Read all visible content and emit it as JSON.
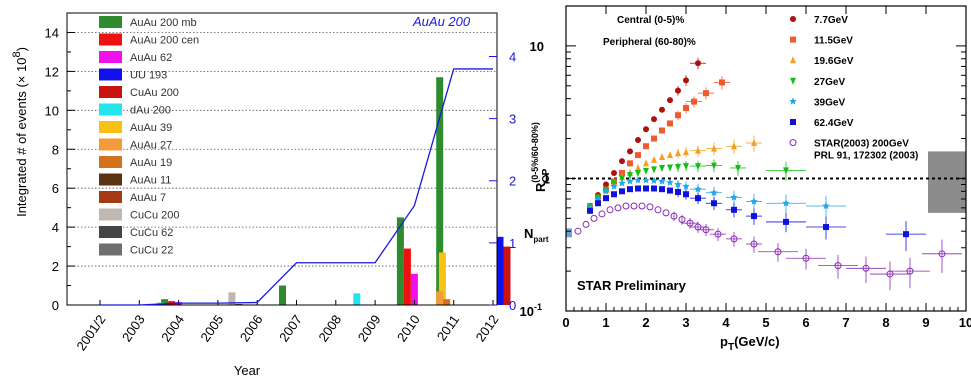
{
  "chart_data": [
    {
      "type": "bar",
      "panel": "left",
      "xlabel": "Year",
      "ylabel": "Integrated # of events (× 10⁸)",
      "ylabel_main": "Integrated # of events (",
      "ylabel_times": "× 10",
      "ylabel_exp": "8",
      "ylabel_close": ")",
      "right_axis_ticks": [
        "0",
        "1",
        "2",
        "3",
        "4"
      ],
      "right_axis_max": 4.7,
      "ylim": [
        0,
        15
      ],
      "yticks": [
        "0",
        "2",
        "4",
        "6",
        "8",
        "10",
        "12",
        "14"
      ],
      "categories": [
        "2001/2",
        "2003",
        "2004",
        "2005",
        "2006",
        "2007",
        "2008",
        "2009",
        "2010",
        "2011",
        "2012"
      ],
      "line_label": "AuAu 200",
      "line_color": "#1a1adb",
      "line_values": [
        0,
        0,
        0.03,
        0.03,
        0.04,
        0.68,
        0.68,
        0.68,
        1.6,
        3.8,
        3.8
      ],
      "series": [
        {
          "name": "AuAu 200 mb",
          "color": "#2e8b2e",
          "values": [
            0,
            0,
            0.3,
            0,
            0,
            1.0,
            0,
            0,
            4.5,
            11.7,
            0
          ]
        },
        {
          "name": "AuAu 200 cen",
          "color": "#ee1111",
          "values": [
            0,
            0,
            0.2,
            0,
            0,
            0,
            0,
            0,
            2.9,
            0,
            0
          ]
        },
        {
          "name": "AuAu 62",
          "color": "#ee11ee",
          "values": [
            0,
            0,
            0.15,
            0,
            0,
            0,
            0,
            0,
            1.6,
            0,
            0
          ]
        },
        {
          "name": "UU 193",
          "color": "#1111ee",
          "values": [
            0,
            0,
            0,
            0,
            0,
            0,
            0,
            0,
            0,
            0,
            3.5
          ]
        },
        {
          "name": "CuAu 200",
          "color": "#cc1111",
          "values": [
            0,
            0,
            0,
            0,
            0,
            0,
            0,
            0,
            0,
            0,
            3.0
          ]
        },
        {
          "name": "dAu 200",
          "color": "#22e5ee",
          "values": [
            0,
            0.12,
            0,
            0,
            0,
            0,
            0.6,
            0,
            0,
            0,
            0
          ]
        },
        {
          "name": "AuAu 39",
          "color": "#f7c214",
          "values": [
            0,
            0,
            0,
            0,
            0,
            0,
            0,
            0,
            2.7,
            0,
            0
          ]
        },
        {
          "name": "AuAu 27",
          "color": "#f59a3a",
          "values": [
            0,
            0,
            0,
            0,
            0,
            0,
            0,
            0,
            0,
            0.7,
            0
          ]
        },
        {
          "name": "AuAu 19",
          "color": "#d2721a",
          "values": [
            0,
            0,
            0,
            0,
            0,
            0,
            0,
            0,
            0,
            0.3,
            0
          ]
        },
        {
          "name": "AuAu 11",
          "color": "#5b3310",
          "values": [
            0,
            0,
            0,
            0,
            0,
            0,
            0,
            0,
            0,
            0,
            0
          ]
        },
        {
          "name": "AuAu 7",
          "color": "#a33a12",
          "values": [
            0,
            0,
            0,
            0,
            0,
            0,
            0,
            0,
            0,
            0,
            0
          ]
        },
        {
          "name": "CuCu 200",
          "color": "#c0b8b0",
          "values": [
            0,
            0,
            0,
            0.65,
            0,
            0,
            0,
            0,
            0,
            0,
            0
          ]
        },
        {
          "name": "CuCu 62",
          "color": "#444444",
          "values": [
            0,
            0,
            0,
            0.05,
            0,
            0,
            0,
            0,
            0,
            0,
            0
          ]
        },
        {
          "name": "CuCu 22",
          "color": "#6f6f6f",
          "values": [
            0,
            0,
            0,
            0.03,
            0,
            0,
            0,
            0,
            0,
            0,
            0
          ]
        }
      ]
    },
    {
      "type": "scatter",
      "panel": "right",
      "xlabel": "p",
      "xlabel_sub": "T",
      "xlabel_unit": "(GeV/c)",
      "ylabel": "R",
      "ylabel_sub": "CP",
      "ylabel_sup": "(0-5%/60-80%)",
      "xlim": [
        0,
        10
      ],
      "ylim": [
        0.1,
        20
      ],
      "log_y": true,
      "xticks": [
        "0",
        "1",
        "2",
        "3",
        "4",
        "5",
        "6",
        "7",
        "8",
        "9",
        "10"
      ],
      "yticks": [
        {
          "v": 0.1,
          "label": "10⁻¹"
        },
        {
          "v": 1,
          "label": "1"
        },
        {
          "v": 10,
          "label": "10"
        }
      ],
      "ytick_base": "10",
      "ytick_neg_exp": "-1",
      "annotations": [
        "Central (0-5)%",
        "Peripheral (60-80)%",
        "STAR Preliminary",
        "N"
      ],
      "npart_label": "N",
      "npart_sub": "part",
      "series": [
        {
          "name": "7.7GeV",
          "color": "#b01010",
          "marker": "circle",
          "x": [
            0.6,
            0.8,
            1.0,
            1.2,
            1.4,
            1.6,
            1.8,
            2.0,
            2.2,
            2.4,
            2.6,
            2.8,
            3.0,
            3.3
          ],
          "y": [
            0.62,
            0.75,
            0.9,
            1.1,
            1.35,
            1.6,
            1.95,
            2.35,
            2.8,
            3.3,
            3.9,
            4.6,
            5.5,
            7.4
          ]
        },
        {
          "name": "11.5GeV",
          "color": "#f05a30",
          "marker": "square",
          "x": [
            0.6,
            0.8,
            1.0,
            1.2,
            1.4,
            1.6,
            1.8,
            2.0,
            2.2,
            2.4,
            2.6,
            2.8,
            3.0,
            3.2,
            3.5,
            3.9
          ],
          "y": [
            0.6,
            0.7,
            0.82,
            0.95,
            1.1,
            1.3,
            1.5,
            1.75,
            2.0,
            2.3,
            2.6,
            3.0,
            3.4,
            3.8,
            4.4,
            5.3
          ]
        },
        {
          "name": "19.6GeV",
          "color": "#f5a020",
          "marker": "triangle-up",
          "x": [
            0.6,
            0.8,
            1.0,
            1.2,
            1.4,
            1.6,
            1.8,
            2.0,
            2.2,
            2.4,
            2.6,
            2.8,
            3.0,
            3.3,
            3.7,
            4.2,
            4.7
          ],
          "y": [
            0.62,
            0.72,
            0.82,
            0.92,
            1.02,
            1.1,
            1.2,
            1.3,
            1.38,
            1.45,
            1.5,
            1.55,
            1.58,
            1.62,
            1.68,
            1.75,
            1.85
          ]
        },
        {
          "name": "27GeV",
          "color": "#11c011",
          "marker": "triangle-down",
          "x": [
            0.6,
            0.8,
            1.0,
            1.2,
            1.4,
            1.6,
            1.8,
            2.0,
            2.2,
            2.4,
            2.6,
            2.8,
            3.0,
            3.3,
            3.7,
            4.3,
            5.5
          ],
          "y": [
            0.62,
            0.72,
            0.82,
            0.92,
            1.0,
            1.06,
            1.1,
            1.14,
            1.17,
            1.2,
            1.21,
            1.22,
            1.24,
            1.24,
            1.25,
            1.2,
            1.15
          ]
        },
        {
          "name": "39GeV",
          "color": "#20a8e8",
          "marker": "star",
          "x": [
            0.6,
            0.8,
            1.0,
            1.2,
            1.4,
            1.6,
            1.8,
            2.0,
            2.2,
            2.4,
            2.6,
            2.8,
            3.0,
            3.3,
            3.7,
            4.2,
            4.7,
            5.5,
            6.5
          ],
          "y": [
            0.6,
            0.7,
            0.8,
            0.87,
            0.92,
            0.95,
            0.97,
            0.97,
            0.96,
            0.95,
            0.93,
            0.9,
            0.87,
            0.83,
            0.78,
            0.72,
            0.67,
            0.65,
            0.62
          ]
        },
        {
          "name": "62.4GeV",
          "color": "#1111dd",
          "marker": "square",
          "x": [
            0.6,
            0.8,
            1.0,
            1.2,
            1.4,
            1.6,
            1.8,
            2.0,
            2.2,
            2.4,
            2.6,
            2.8,
            3.0,
            3.3,
            3.7,
            4.2,
            4.7,
            5.5,
            6.5,
            8.5
          ],
          "y": [
            0.57,
            0.65,
            0.71,
            0.76,
            0.8,
            0.83,
            0.84,
            0.84,
            0.84,
            0.83,
            0.81,
            0.79,
            0.76,
            0.71,
            0.65,
            0.58,
            0.52,
            0.47,
            0.43,
            0.38
          ]
        },
        {
          "name": "STAR(2003) 200GeV",
          "name2": "PRL 91, 172302 (2003)",
          "color": "#8a2bb5",
          "marker": "open-circle",
          "x": [
            0.3,
            0.5,
            0.7,
            0.9,
            1.1,
            1.3,
            1.5,
            1.7,
            1.9,
            2.1,
            2.3,
            2.5,
            2.7,
            2.9,
            3.1,
            3.3,
            3.5,
            3.8,
            4.2,
            4.7,
            5.3,
            6.0,
            6.8,
            7.5,
            8.1,
            8.6,
            9.4
          ],
          "y": [
            0.4,
            0.45,
            0.5,
            0.54,
            0.58,
            0.6,
            0.62,
            0.62,
            0.62,
            0.61,
            0.58,
            0.55,
            0.52,
            0.49,
            0.46,
            0.43,
            0.41,
            0.38,
            0.35,
            0.32,
            0.28,
            0.25,
            0.22,
            0.21,
            0.19,
            0.2,
            0.27
          ]
        }
      ]
    }
  ]
}
